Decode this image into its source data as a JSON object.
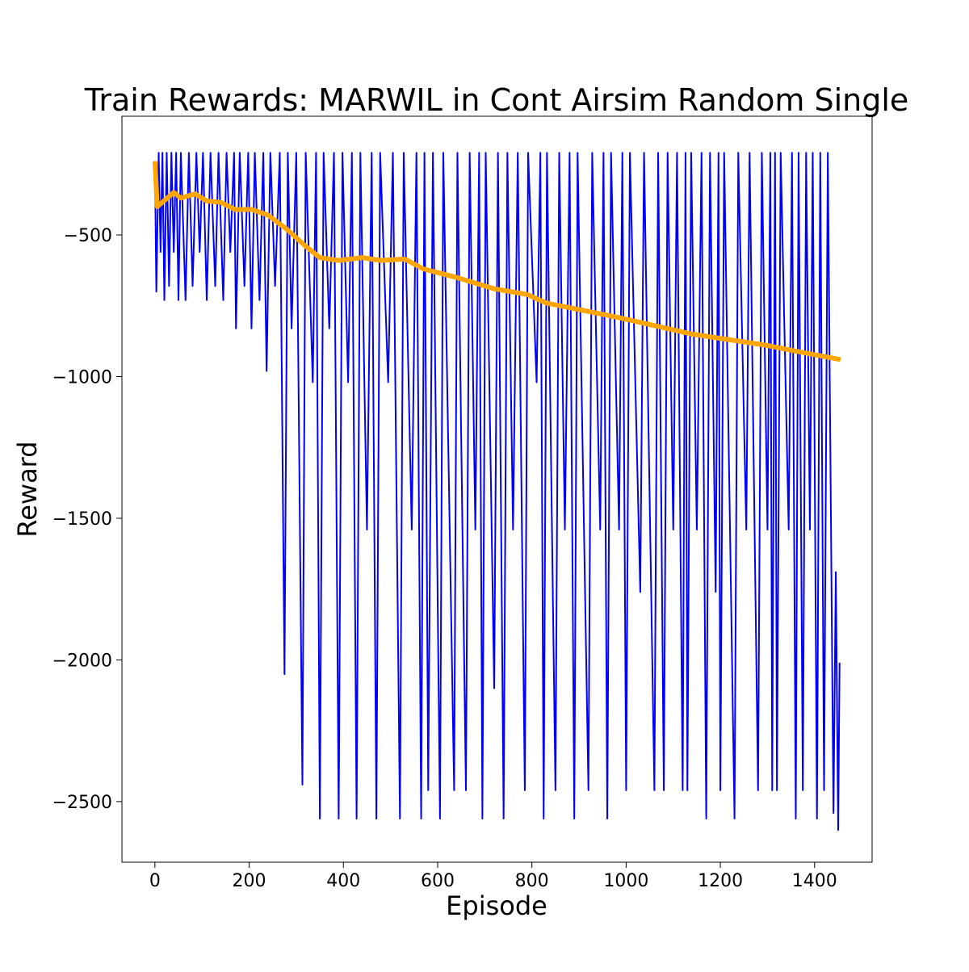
{
  "chart_data": {
    "type": "line",
    "title": "Train Rewards: MARWIL in Cont Airsim Random Single",
    "xlabel": "Episode",
    "ylabel": "Reward",
    "xlim": [
      -70,
      1522
    ],
    "ylim": [
      -2714,
      -81
    ],
    "xticks": [
      0,
      200,
      400,
      600,
      800,
      1000,
      1200,
      1400
    ],
    "yticks": [
      {
        "value": -500,
        "label": "−500"
      },
      {
        "value": -1000,
        "label": "−1000"
      },
      {
        "value": -1500,
        "label": "−1500"
      },
      {
        "value": -2000,
        "label": "−2000"
      },
      {
        "value": -2500,
        "label": "−2500"
      }
    ],
    "series": [
      {
        "color": "#0000ff",
        "width": 2,
        "x": [
          0,
          3,
          8,
          12,
          16,
          20,
          25,
          30,
          35,
          40,
          45,
          50,
          55,
          65,
          72,
          80,
          88,
          95,
          102,
          110,
          118,
          128,
          135,
          145,
          152,
          160,
          168,
          172,
          180,
          190,
          198,
          205,
          212,
          222,
          230,
          237,
          245,
          255,
          265,
          275,
          282,
          290,
          300,
          313,
          320,
          335,
          342,
          350,
          358,
          370,
          380,
          390,
          398,
          410,
          418,
          428,
          436,
          450,
          460,
          470,
          478,
          495,
          505,
          520,
          528,
          545,
          555,
          565,
          572,
          580,
          590,
          605,
          612,
          635,
          642,
          660,
          668,
          680,
          688,
          695,
          702,
          720,
          728,
          740,
          748,
          760,
          770,
          785,
          792,
          810,
          818,
          825,
          832,
          850,
          858,
          870,
          880,
          890,
          897,
          920,
          928,
          945,
          952,
          960,
          968,
          985,
          992,
          1000,
          1008,
          1030,
          1038,
          1060,
          1068,
          1080,
          1088,
          1100,
          1108,
          1120,
          1126,
          1130,
          1138,
          1150,
          1160,
          1170,
          1178,
          1190,
          1196,
          1200,
          1208,
          1230,
          1238,
          1255,
          1262,
          1280,
          1288,
          1300,
          1306,
          1310,
          1316,
          1320,
          1328,
          1345,
          1352,
          1360,
          1366,
          1375,
          1382,
          1390,
          1396,
          1405,
          1412,
          1420,
          1428,
          1440,
          1445,
          1450,
          1453
        ],
        "values": [
          -240,
          -700,
          -210,
          -560,
          -210,
          -730,
          -210,
          -680,
          -210,
          -560,
          -210,
          -730,
          -210,
          -730,
          -210,
          -680,
          -210,
          -560,
          -210,
          -730,
          -210,
          -680,
          -210,
          -730,
          -210,
          -560,
          -210,
          -830,
          -210,
          -680,
          -210,
          -830,
          -210,
          -730,
          -210,
          -980,
          -210,
          -680,
          -210,
          -2050,
          -210,
          -830,
          -210,
          -2440,
          -210,
          -1020,
          -210,
          -2560,
          -210,
          -830,
          -210,
          -2560,
          -210,
          -1020,
          -210,
          -2560,
          -210,
          -1540,
          -210,
          -2560,
          -210,
          -1020,
          -210,
          -2560,
          -210,
          -1540,
          -210,
          -2560,
          -210,
          -2460,
          -210,
          -2560,
          -210,
          -2460,
          -210,
          -2460,
          -210,
          -1540,
          -210,
          -2560,
          -210,
          -2100,
          -210,
          -2560,
          -210,
          -1540,
          -210,
          -2460,
          -210,
          -1020,
          -210,
          -2560,
          -210,
          -2460,
          -210,
          -1540,
          -210,
          -2560,
          -210,
          -2460,
          -210,
          -1540,
          -210,
          -2560,
          -210,
          -1540,
          -210,
          -2460,
          -210,
          -1760,
          -210,
          -2460,
          -210,
          -2460,
          -210,
          -1540,
          -210,
          -2460,
          -210,
          -2460,
          -210,
          -1540,
          -210,
          -2560,
          -210,
          -1760,
          -210,
          -2460,
          -210,
          -2560,
          -210,
          -1540,
          -210,
          -2460,
          -210,
          -1540,
          -210,
          -2460,
          -210,
          -2460,
          -210,
          -1540,
          -210,
          -2560,
          -210,
          -2460,
          -210,
          -1540,
          -210,
          -2560,
          -210,
          -2460,
          -210,
          -2540,
          -1690,
          -2600,
          -2010
        ]
      },
      {
        "color": "#ffa500",
        "width": 6,
        "x": [
          0,
          5,
          40,
          55,
          85,
          110,
          140,
          170,
          205,
          240,
          280,
          320,
          350,
          390,
          440,
          480,
          530,
          570,
          640,
          720,
          790,
          830,
          890,
          980,
          1060,
          1140,
          1220,
          1300,
          1360,
          1455
        ],
        "values": [
          -240,
          -400,
          -350,
          -370,
          -355,
          -380,
          -385,
          -410,
          -410,
          -430,
          -480,
          -540,
          -580,
          -590,
          -580,
          -590,
          -585,
          -620,
          -650,
          -690,
          -710,
          -740,
          -760,
          -790,
          -820,
          -850,
          -870,
          -890,
          -910,
          -940
        ]
      }
    ]
  }
}
